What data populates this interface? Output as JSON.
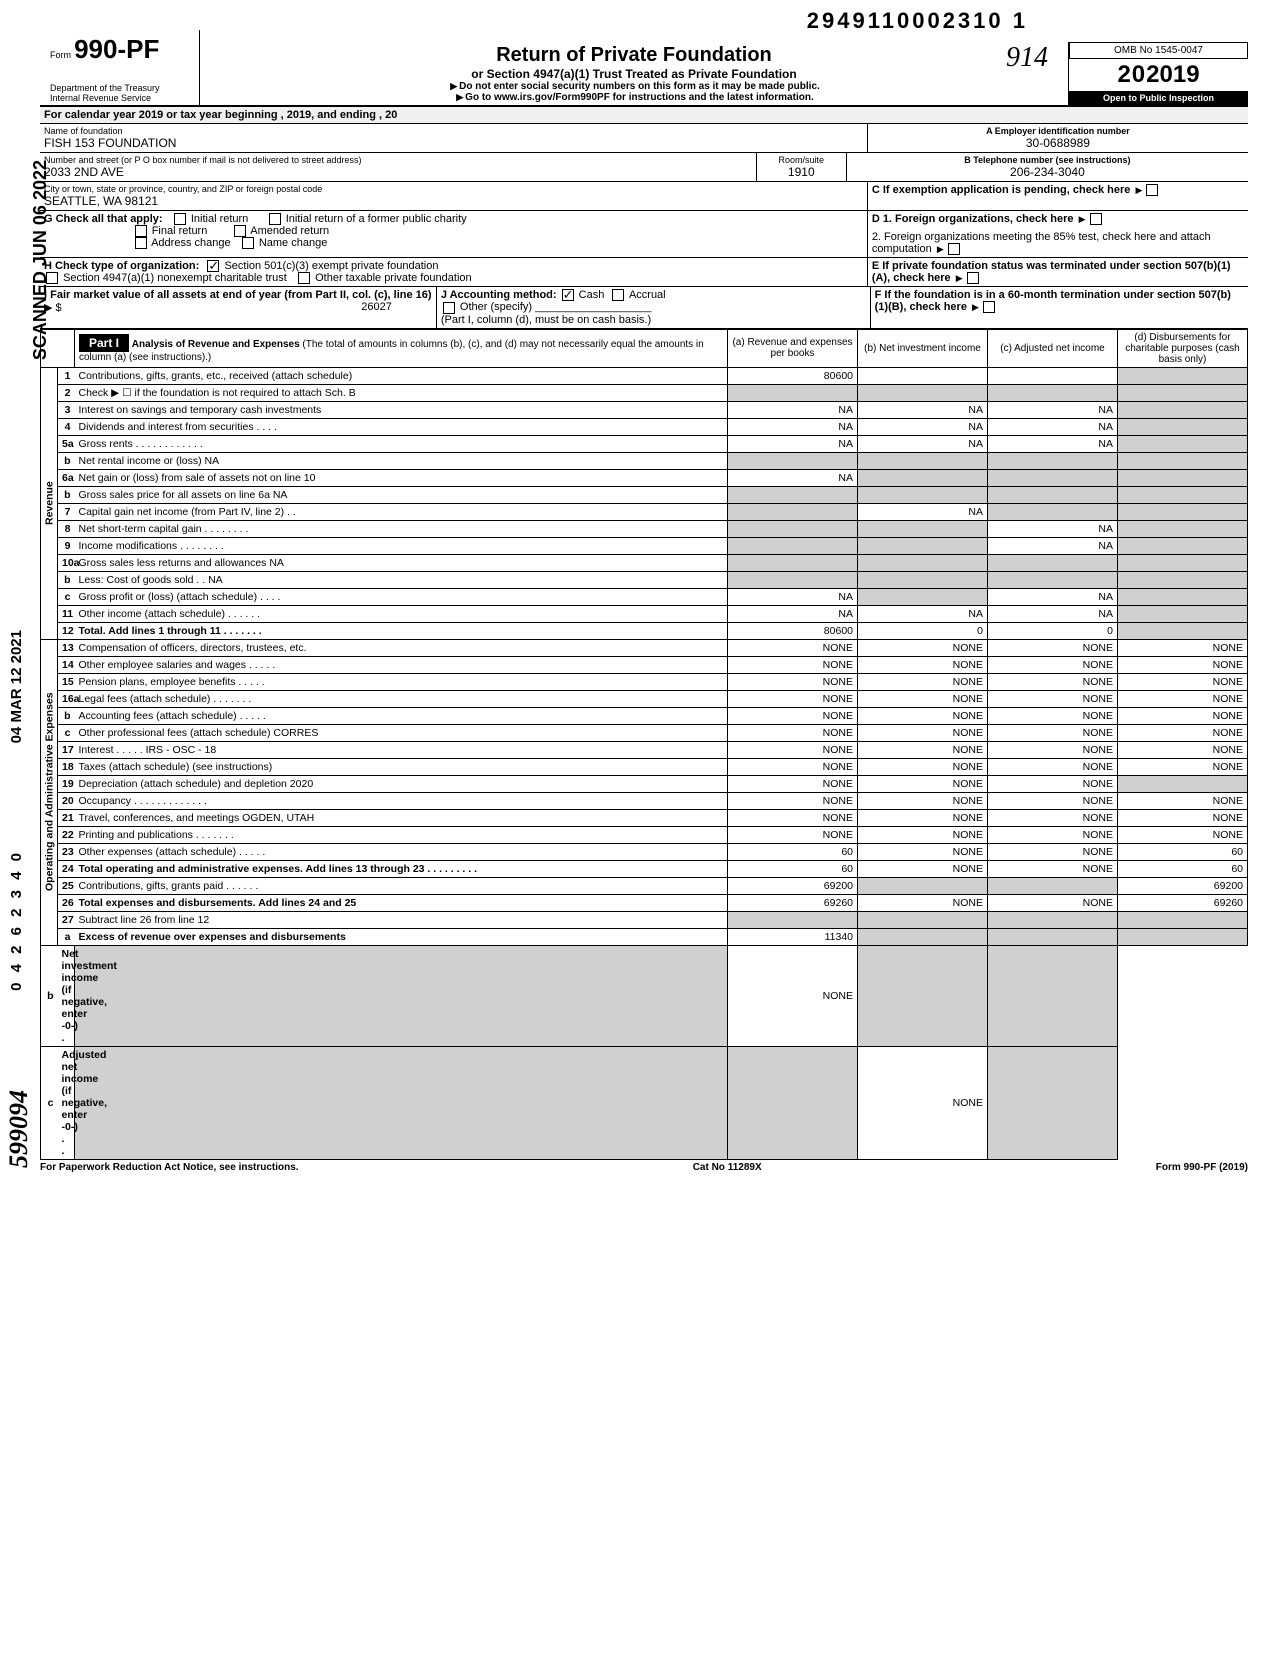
{
  "doc_number": "2949110002310 1",
  "form": {
    "number_prefix": "Form",
    "number": "990-PF",
    "title": "Return of Private Foundation",
    "subtitle": "or Section 4947(a)(1) Trust Treated as Private Foundation",
    "warning": "Do not enter social security numbers on this form as it may be made public.",
    "goto": "Go to www.irs.gov/Form990PF for instructions and the latest information.",
    "dept1": "Department of the Treasury",
    "dept2": "Internal Revenue Service",
    "omb": "OMB No 1545-0047",
    "year": "2019",
    "inspection": "Open to Public Inspection",
    "year_outline": "20"
  },
  "cal_year_line": "For calendar year 2019 or tax year beginning                                       , 2019, and ending                                       , 20",
  "header": {
    "name_label": "Name of foundation",
    "name": "FISH 153 FOUNDATION",
    "addr_label": "Number and street (or P O  box number if mail is not delivered to street address)",
    "addr": "2033 2ND AVE",
    "room_label": "Room/suite",
    "room": "1910",
    "city_label": "City or town, state or province, country, and ZIP or foreign postal code",
    "city": "SEATTLE, WA 98121",
    "ein_label": "A  Employer identification number",
    "ein": "30-0688989",
    "phone_label": "B  Telephone number (see instructions)",
    "phone": "206-234-3040",
    "c_label": "C  If exemption application is pending, check here",
    "d1_label": "D  1. Foreign organizations, check here",
    "d2_label": "2. Foreign organizations meeting the 85% test, check here and attach computation",
    "e_label": "E  If private foundation status was terminated under section 507(b)(1)(A), check here",
    "f_label": "F  If the foundation is in a 60-month termination under section 507(b)(1)(B), check here"
  },
  "checks": {
    "g_label": "G  Check all that apply:",
    "initial": "Initial return",
    "initial_former": "Initial return of a former public charity",
    "final": "Final return",
    "amended": "Amended return",
    "addr_change": "Address change",
    "name_change": "Name change",
    "h_label": "H  Check type of organization:",
    "h_501": "Section 501(c)(3) exempt private foundation",
    "h_4947": "Section 4947(a)(1) nonexempt charitable trust",
    "h_other": "Other taxable private foundation",
    "i_label": "I   Fair market value of all assets at end of year  (from Part II, col. (c), line 16)",
    "i_value": "26027",
    "j_label": "J   Accounting method:",
    "j_cash": "Cash",
    "j_accrual": "Accrual",
    "j_other": "Other (specify)",
    "j_note": "(Part I, column (d), must be on cash basis.)"
  },
  "part1": {
    "label": "Part I",
    "heading": "Analysis of Revenue and Expenses",
    "heading_note": "(The total of amounts in columns (b), (c), and (d) may not necessarily equal the amounts in column (a) (see instructions).)",
    "col_a": "(a) Revenue and expenses per books",
    "col_b": "(b) Net investment income",
    "col_c": "(c) Adjusted net income",
    "col_d": "(d) Disbursements for charitable purposes (cash basis only)",
    "revenue_label": "Revenue",
    "expenses_label": "Operating and Administrative Expenses"
  },
  "lines": [
    {
      "no": "1",
      "desc": "Contributions, gifts, grants, etc., received (attach schedule)",
      "a": "80600",
      "b": "",
      "c": "",
      "d": "",
      "shade": [
        "d"
      ]
    },
    {
      "no": "2",
      "desc": "Check ▶ ☐ if the foundation is not required to attach Sch. B",
      "a": "",
      "b": "",
      "c": "",
      "d": "",
      "shade": [
        "a",
        "b",
        "c",
        "d"
      ]
    },
    {
      "no": "3",
      "desc": "Interest on savings and temporary cash investments",
      "a": "NA",
      "b": "NA",
      "c": "NA",
      "d": "",
      "shade": [
        "d"
      ]
    },
    {
      "no": "4",
      "desc": "Dividends and interest from securities   .   .   .   .",
      "a": "NA",
      "b": "NA",
      "c": "NA",
      "d": "",
      "shade": [
        "d"
      ]
    },
    {
      "no": "5a",
      "desc": "Gross rents  .   .   .   .   .   .   .   .   .   .   .   .",
      "a": "NA",
      "b": "NA",
      "c": "NA",
      "d": "",
      "shade": [
        "d"
      ]
    },
    {
      "no": "b",
      "desc": "Net rental income or (loss)                                         NA",
      "a": "",
      "b": "",
      "c": "",
      "d": "",
      "shade": [
        "a",
        "b",
        "c",
        "d"
      ]
    },
    {
      "no": "6a",
      "desc": "Net gain or (loss) from sale of assets not on line 10",
      "a": "NA",
      "b": "",
      "c": "",
      "d": "",
      "shade": [
        "b",
        "c",
        "d"
      ]
    },
    {
      "no": "b",
      "desc": "Gross sales price for all assets on line 6a                    NA",
      "a": "",
      "b": "",
      "c": "",
      "d": "",
      "shade": [
        "a",
        "b",
        "c",
        "d"
      ]
    },
    {
      "no": "7",
      "desc": "Capital gain net income (from Part IV, line 2)   .   .",
      "a": "",
      "b": "NA",
      "c": "",
      "d": "",
      "shade": [
        "a",
        "c",
        "d"
      ]
    },
    {
      "no": "8",
      "desc": "Net short-term capital gain   .   .   .   .   .   .   .   .",
      "a": "",
      "b": "",
      "c": "NA",
      "d": "",
      "shade": [
        "a",
        "b",
        "d"
      ]
    },
    {
      "no": "9",
      "desc": "Income modifications           .   .   .   .   .   .   .   .",
      "a": "",
      "b": "",
      "c": "NA",
      "d": "",
      "shade": [
        "a",
        "b",
        "d"
      ]
    },
    {
      "no": "10a",
      "desc": "Gross sales less returns and allowances                    NA",
      "a": "",
      "b": "",
      "c": "",
      "d": "",
      "shade": [
        "a",
        "b",
        "c",
        "d"
      ]
    },
    {
      "no": "b",
      "desc": "Less: Cost of goods sold      .   .                              NA",
      "a": "",
      "b": "",
      "c": "",
      "d": "",
      "shade": [
        "a",
        "b",
        "c",
        "d"
      ]
    },
    {
      "no": "c",
      "desc": "Gross profit or (loss) (attach schedule)   .   .   .   .",
      "a": "NA",
      "b": "",
      "c": "NA",
      "d": "",
      "shade": [
        "b",
        "d"
      ]
    },
    {
      "no": "11",
      "desc": "Other income (attach schedule)     .   .   .   .   .   .",
      "a": "NA",
      "b": "NA",
      "c": "NA",
      "d": "",
      "shade": [
        "d"
      ]
    },
    {
      "no": "12",
      "desc": "Total. Add lines 1 through 11    .   .   .   .   .   .   .",
      "a": "80600",
      "b": "0",
      "c": "0",
      "d": "",
      "shade": [
        "d"
      ],
      "bold": true
    },
    {
      "no": "13",
      "desc": "Compensation of officers, directors, trustees, etc.",
      "a": "NONE",
      "b": "NONE",
      "c": "NONE",
      "d": "NONE"
    },
    {
      "no": "14",
      "desc": "Other employee salaries and wages  .   .   .   .   .",
      "a": "NONE",
      "b": "NONE",
      "c": "NONE",
      "d": "NONE"
    },
    {
      "no": "15",
      "desc": "Pension plans, employee benefits     .   .   .   .   .",
      "a": "NONE",
      "b": "NONE",
      "c": "NONE",
      "d": "NONE"
    },
    {
      "no": "16a",
      "desc": "Legal fees (attach schedule)      .   .   .   .   .   .   .",
      "a": "NONE",
      "b": "NONE",
      "c": "NONE",
      "d": "NONE"
    },
    {
      "no": "b",
      "desc": "Accounting fees (attach schedule)    .   .   .   .   .",
      "a": "NONE",
      "b": "NONE",
      "c": "NONE",
      "d": "NONE"
    },
    {
      "no": "c",
      "desc": "Other professional fees (attach schedule) CORRES",
      "a": "NONE",
      "b": "NONE",
      "c": "NONE",
      "d": "NONE"
    },
    {
      "no": "17",
      "desc": "Interest     .   .   .   .   .        IRS - OSC - 18",
      "a": "NONE",
      "b": "NONE",
      "c": "NONE",
      "d": "NONE"
    },
    {
      "no": "18",
      "desc": "Taxes (attach schedule) (see instructions)",
      "a": "NONE",
      "b": "NONE",
      "c": "NONE",
      "d": "NONE"
    },
    {
      "no": "19",
      "desc": "Depreciation (attach schedule) and depletion 2020",
      "a": "NONE",
      "b": "NONE",
      "c": "NONE",
      "d": "",
      "shade": [
        "d"
      ]
    },
    {
      "no": "20",
      "desc": "Occupancy .   .   .   .   .   .   .   .   .   .   .   .   .",
      "a": "NONE",
      "b": "NONE",
      "c": "NONE",
      "d": "NONE"
    },
    {
      "no": "21",
      "desc": "Travel, conferences, and meetings OGDEN, UTAH",
      "a": "NONE",
      "b": "NONE",
      "c": "NONE",
      "d": "NONE"
    },
    {
      "no": "22",
      "desc": "Printing and publications      .   .   .   .   .   .   .",
      "a": "NONE",
      "b": "NONE",
      "c": "NONE",
      "d": "NONE"
    },
    {
      "no": "23",
      "desc": "Other expenses (attach schedule)     .   .   .   .   .",
      "a": "60",
      "b": "NONE",
      "c": "NONE",
      "d": "60"
    },
    {
      "no": "24",
      "desc": "Total operating and administrative expenses. Add lines 13 through 23   .   .   .   .   .   .   .   .   .",
      "a": "60",
      "b": "NONE",
      "c": "NONE",
      "d": "60",
      "bold": true
    },
    {
      "no": "25",
      "desc": "Contributions, gifts, grants paid    .   .   .   .   .   .",
      "a": "69200",
      "b": "",
      "c": "",
      "d": "69200",
      "shade": [
        "b",
        "c"
      ]
    },
    {
      "no": "26",
      "desc": "Total expenses and disbursements. Add lines 24 and 25",
      "a": "69260",
      "b": "NONE",
      "c": "NONE",
      "d": "69260",
      "bold": true
    },
    {
      "no": "27",
      "desc": "Subtract line 26 from line 12",
      "a": "",
      "b": "",
      "c": "",
      "d": "",
      "shade": [
        "a",
        "b",
        "c",
        "d"
      ]
    },
    {
      "no": "a",
      "desc": "Excess of revenue over expenses and disbursements",
      "a": "11340",
      "b": "",
      "c": "",
      "d": "",
      "shade": [
        "b",
        "c",
        "d"
      ],
      "bold": true
    },
    {
      "no": "b",
      "desc": "Net investment income (if negative, enter -0-)   .",
      "a": "",
      "b": "NONE",
      "c": "",
      "d": "",
      "shade": [
        "a",
        "c",
        "d"
      ],
      "bold": true
    },
    {
      "no": "c",
      "desc": "Adjusted net income (if negative, enter -0-)  .   .",
      "a": "",
      "b": "",
      "c": "NONE",
      "d": "",
      "shade": [
        "a",
        "b",
        "d"
      ],
      "bold": true
    }
  ],
  "footer": {
    "left": "For Paperwork Reduction Act Notice, see instructions.",
    "center": "Cat No  11289X",
    "right": "Form 990-PF (2019)"
  },
  "side_text": {
    "scanned": "SCANNED JUN 06 2022",
    "received": "04 MAR 12 2021",
    "ref": "0 4 2 6 2 3 4 0",
    "sig": "599094"
  },
  "handwritten": "914"
}
